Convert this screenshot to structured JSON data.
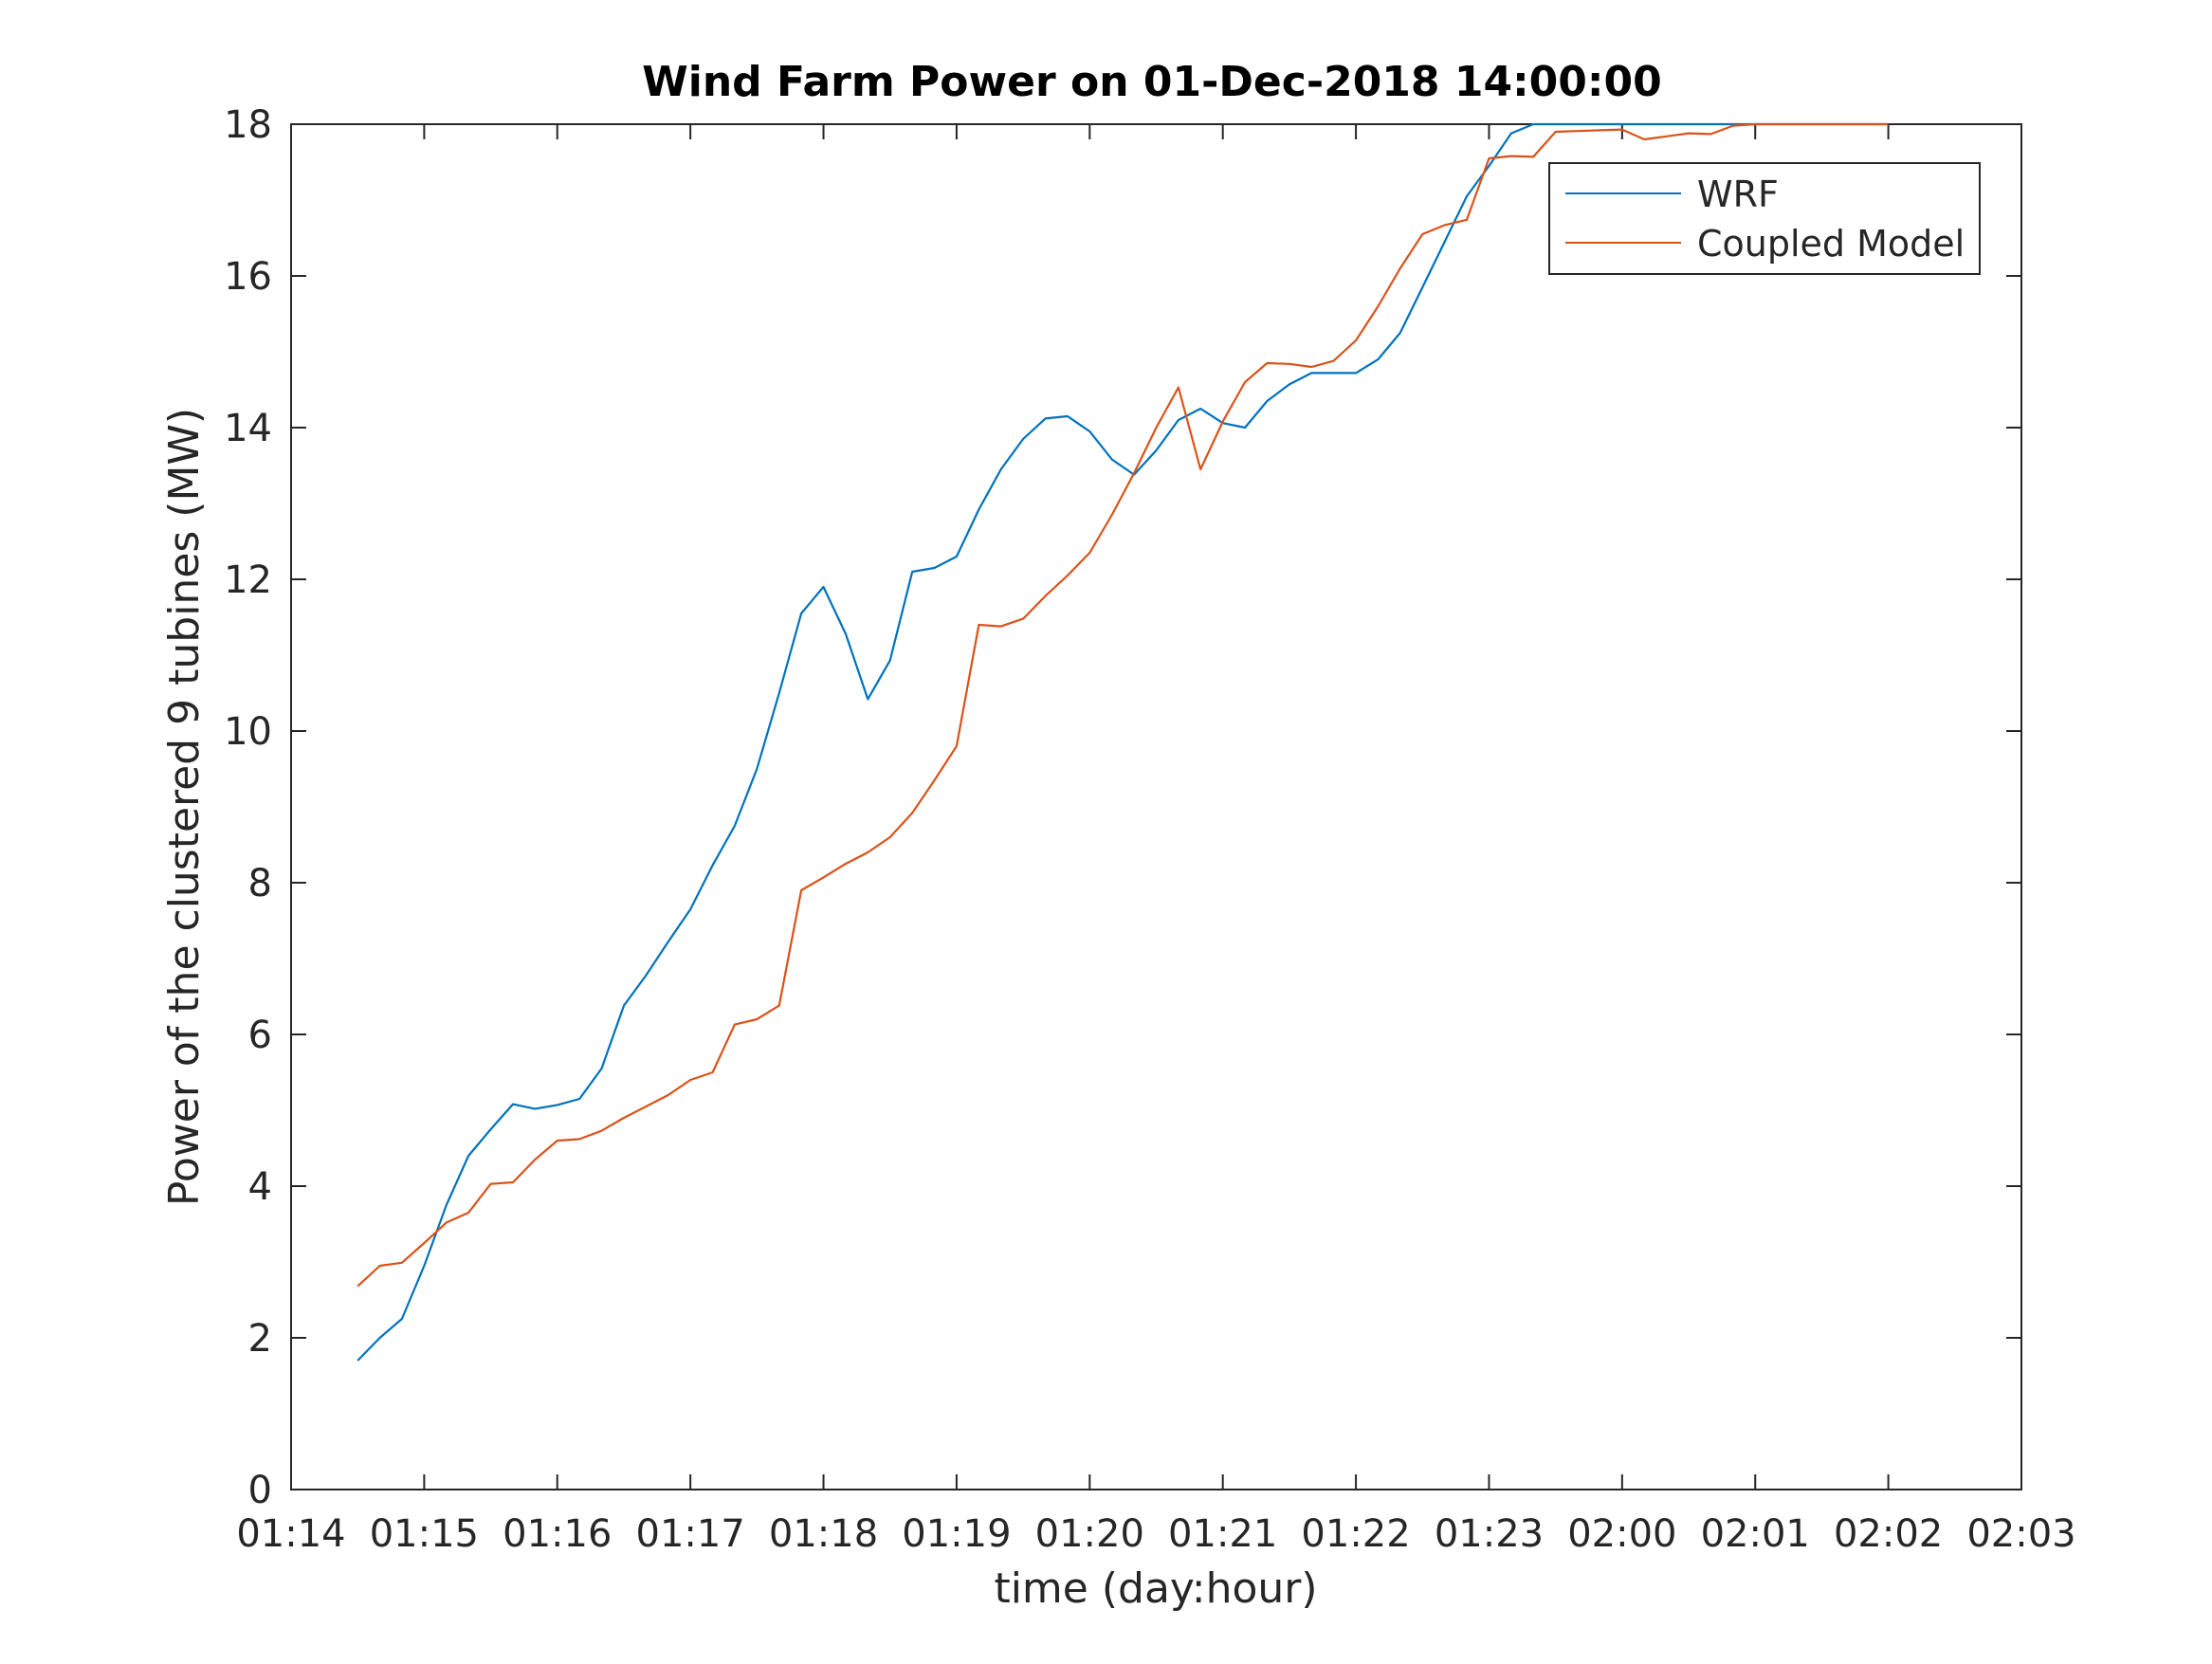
{
  "chart_data": {
    "type": "line",
    "title": "Wind Farm Power on 01-Dec-2018 14:00:00",
    "xlabel": "time (day:hour)",
    "ylabel": "Power of the clustered 9 tubines (MW)",
    "ylim": [
      0,
      18
    ],
    "yticks": [
      "0",
      "2",
      "4",
      "6",
      "8",
      "10",
      "12",
      "14",
      "16",
      "18"
    ],
    "xticks": [
      "01:14",
      "01:15",
      "01:16",
      "01:17",
      "01:18",
      "01:19",
      "01:20",
      "01:21",
      "01:22",
      "01:23",
      "02:00",
      "02:01",
      "02:02",
      "02:03"
    ],
    "xlim": [
      0,
      13
    ],
    "grid": false,
    "legend_position": "top-right",
    "x": [
      0.5,
      0.667,
      0.833,
      1.0,
      1.167,
      1.333,
      1.5,
      1.667,
      1.833,
      2.0,
      2.167,
      2.333,
      2.5,
      2.667,
      2.833,
      3.0,
      3.167,
      3.333,
      3.5,
      3.667,
      3.833,
      4.0,
      4.167,
      4.333,
      4.5,
      4.667,
      4.833,
      5.0,
      5.167,
      5.333,
      5.5,
      5.667,
      5.833,
      6.0,
      6.167,
      6.333,
      6.5,
      6.667,
      6.833,
      7.0,
      7.167,
      7.333,
      7.5,
      7.667,
      7.833,
      8.0,
      8.167,
      8.333,
      8.5,
      8.667,
      8.833,
      9.0,
      9.167,
      9.333,
      9.5,
      9.667,
      9.833,
      10.0,
      10.167,
      10.333,
      10.5,
      10.667,
      10.833,
      11.0,
      11.167,
      11.333,
      11.5,
      11.667,
      11.833,
      12.0
    ],
    "series": [
      {
        "name": "WRF",
        "color": "#0072BD",
        "values": [
          1.7,
          2.0,
          2.25,
          2.95,
          3.75,
          4.4,
          4.75,
          5.08,
          5.02,
          5.07,
          5.15,
          5.55,
          6.38,
          6.78,
          7.22,
          7.65,
          8.23,
          8.75,
          9.5,
          10.5,
          11.55,
          11.9,
          11.28,
          10.42,
          10.93,
          12.1,
          12.15,
          12.3,
          12.92,
          13.45,
          13.85,
          14.12,
          14.15,
          13.95,
          13.58,
          13.38,
          13.7,
          14.1,
          14.25,
          14.06,
          14.0,
          14.35,
          14.57,
          14.72,
          14.72,
          14.72,
          14.9,
          15.25,
          15.85,
          16.45,
          17.05,
          17.45,
          17.88,
          18.0,
          18.0,
          18.0,
          18.0,
          18.0,
          18.0,
          18.0,
          18.0,
          18.0,
          18.0,
          18.0,
          18.0,
          18.0,
          18.0,
          18.0,
          18.0,
          18.0
        ]
      },
      {
        "name": "Coupled Model",
        "color": "#D95319",
        "values": [
          2.68,
          2.95,
          2.99,
          3.25,
          3.52,
          3.65,
          4.03,
          4.05,
          4.35,
          4.6,
          4.62,
          4.73,
          4.9,
          5.05,
          5.2,
          5.4,
          5.5,
          6.13,
          6.2,
          6.38,
          7.9,
          8.07,
          8.25,
          8.4,
          8.6,
          8.92,
          9.35,
          9.8,
          11.4,
          11.38,
          11.48,
          11.78,
          12.05,
          12.35,
          12.85,
          13.4,
          14.0,
          14.53,
          13.45,
          14.08,
          14.6,
          14.85,
          14.84,
          14.8,
          14.88,
          15.15,
          15.6,
          16.1,
          16.55,
          16.67,
          16.74,
          17.55,
          17.58,
          17.57,
          17.9,
          17.91,
          17.92,
          17.93,
          17.8,
          17.84,
          17.88,
          17.87,
          17.98,
          18.0,
          18.0,
          18.0,
          18.0,
          18.0,
          18.0,
          18.0
        ]
      }
    ]
  }
}
